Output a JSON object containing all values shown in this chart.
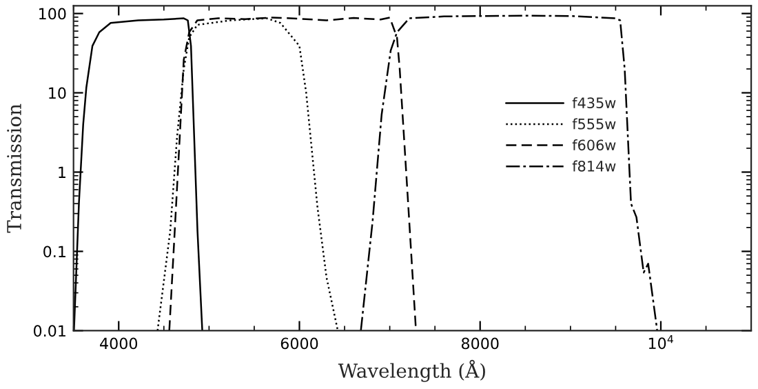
{
  "chart_data": {
    "type": "line",
    "xlabel": "Wavelength (Å)",
    "ylabel": "Transmission",
    "log": "y",
    "xlim": [
      3500,
      11000
    ],
    "ylim": [
      0.01,
      125
    ],
    "xticks": [
      4000,
      6000,
      8000,
      {
        "value": 10000,
        "label": "10$^{4}$"
      }
    ],
    "yticks": [
      {
        "value": 0.01,
        "label": "0.01"
      },
      {
        "value": 0.1,
        "label": "0.1"
      },
      {
        "value": 1,
        "label": "1"
      },
      {
        "value": 10,
        "label": "10"
      },
      {
        "value": 100,
        "label": "100"
      }
    ],
    "legend": "right",
    "series": [
      {
        "name": "f435w",
        "color": "#000000",
        "line_style": "solid",
        "x": [
          3505,
          3560,
          3607,
          3642,
          3709,
          3785,
          3911,
          4216,
          4500,
          4720,
          4765,
          4800,
          4872,
          4925
        ],
        "values": [
          0.01,
          0.41,
          4.0,
          11.7,
          39,
          58,
          76,
          82,
          84,
          87,
          82,
          39,
          0.18,
          0.01
        ]
      },
      {
        "name": "f555w",
        "color": "#000000",
        "line_style": "dotted",
        "x": [
          4430,
          4570,
          4645,
          4720,
          4780,
          4870,
          5240,
          5640,
          5790,
          6000,
          6075,
          6200,
          6300,
          6425
        ],
        "values": [
          0.01,
          0.18,
          2.7,
          20,
          50,
          72,
          82,
          87,
          76,
          39,
          10,
          0.36,
          0.047,
          0.01
        ]
      },
      {
        "name": "f606w",
        "color": "#000000",
        "line_style": "dashed",
        "x": [
          4560,
          4620,
          4675,
          4720,
          4780,
          4870,
          5100,
          5400,
          5700,
          6000,
          6300,
          6600,
          6900,
          7000,
          7080,
          7110,
          7190,
          7290
        ],
        "values": [
          0.01,
          0.18,
          2.7,
          26,
          58,
          82,
          87,
          85,
          89,
          86,
          82,
          88,
          84,
          89,
          50,
          20,
          0.71,
          0.01
        ]
      },
      {
        "name": "f814w",
        "color": "#000000",
        "line_style": "dashdot",
        "x": [
          6680,
          6810,
          6910,
          7010,
          7080,
          7215,
          7600,
          8500,
          9000,
          9500,
          9550,
          9600,
          9670,
          9730,
          9810,
          9860,
          9960
        ],
        "values": [
          0.01,
          0.24,
          5.3,
          34,
          58,
          87,
          92,
          94,
          93,
          87,
          82,
          20,
          0.4,
          0.27,
          0.054,
          0.07,
          0.01
        ]
      }
    ]
  }
}
